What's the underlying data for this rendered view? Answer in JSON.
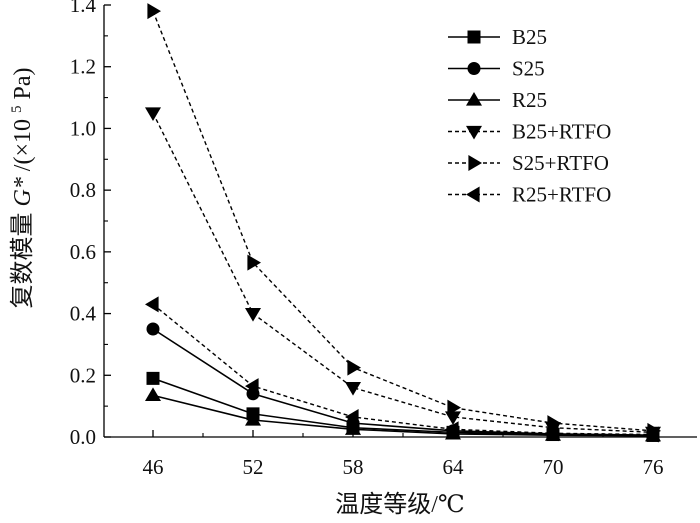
{
  "chart_data": {
    "type": "line",
    "title": "",
    "xlabel": "温度等级/℃",
    "ylabel": "复数模量 G*/(×10⁵ Pa)",
    "ylabel_parts": {
      "prefix": "复数模量",
      "symbol": "G*",
      "suffix_open": "/(×10",
      "exponent": "5",
      "suffix_close": " Pa)"
    },
    "categories": [
      "46",
      "52",
      "58",
      "64",
      "70",
      "76"
    ],
    "ylim": [
      0,
      1.4
    ],
    "yticks": [
      "0.0",
      "0.2",
      "0.4",
      "0.6",
      "0.8",
      "1.0",
      "1.2",
      "1.4"
    ],
    "grid": false,
    "legend_position": "top-right",
    "series": [
      {
        "name": "B25",
        "marker": "square",
        "line": "solid",
        "values": [
          0.19,
          0.075,
          0.03,
          0.015,
          0.008,
          0.005
        ]
      },
      {
        "name": "S25",
        "marker": "circle",
        "line": "solid",
        "values": [
          0.35,
          0.14,
          0.045,
          0.02,
          0.01,
          0.006
        ]
      },
      {
        "name": "R25",
        "marker": "triangle-up",
        "line": "solid",
        "values": [
          0.135,
          0.055,
          0.025,
          0.01,
          0.006,
          0.004
        ]
      },
      {
        "name": "B25+RTFO",
        "marker": "triangle-down",
        "line": "dashed",
        "values": [
          1.05,
          0.4,
          0.16,
          0.065,
          0.03,
          0.015
        ]
      },
      {
        "name": "S25+RTFO",
        "marker": "triangle-right",
        "line": "dashed",
        "values": [
          1.38,
          0.565,
          0.225,
          0.095,
          0.045,
          0.02
        ]
      },
      {
        "name": "R25+RTFO",
        "marker": "triangle-left",
        "line": "dashed",
        "values": [
          0.43,
          0.165,
          0.065,
          0.025,
          0.012,
          0.008
        ]
      }
    ],
    "colors": {
      "line": "#000000",
      "axis": "#000000",
      "text": "#111111"
    }
  }
}
